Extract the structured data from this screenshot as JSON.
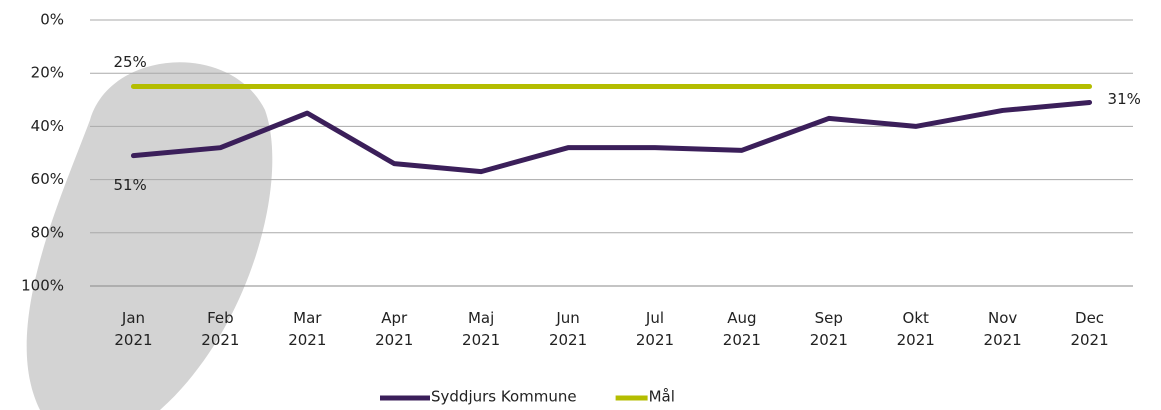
{
  "chart_data": {
    "type": "line",
    "categories": [
      "Jan 2021",
      "Feb 2021",
      "Mar 2021",
      "Apr 2021",
      "Maj 2021",
      "Jun 2021",
      "Jul 2021",
      "Aug 2021",
      "Sep 2021",
      "Okt 2021",
      "Nov 2021",
      "Dec 2021"
    ],
    "series": [
      {
        "name": "Syddjurs Kommune",
        "color": "#3b1f5a",
        "values": [
          51,
          48,
          35,
          54,
          57,
          48,
          48,
          49,
          37,
          40,
          34,
          31
        ],
        "value_labels": [
          "51%",
          null,
          null,
          null,
          null,
          null,
          null,
          null,
          null,
          null,
          null,
          "31%"
        ]
      },
      {
        "name": "Mål",
        "color": "#b4bd00",
        "values": [
          25,
          25,
          25,
          25,
          25,
          25,
          25,
          25,
          25,
          25,
          25,
          25
        ],
        "value_labels": [
          "25%",
          null,
          null,
          null,
          null,
          null,
          null,
          null,
          null,
          null,
          null,
          null
        ]
      }
    ],
    "ylim": [
      0,
      100
    ],
    "y_inverted": true,
    "yticks": [
      {
        "value": 0,
        "label": "0%"
      },
      {
        "value": 20,
        "label": "20%"
      },
      {
        "value": 40,
        "label": "40%"
      },
      {
        "value": 60,
        "label": "60%"
      },
      {
        "value": 80,
        "label": "80%"
      },
      {
        "value": 100,
        "label": "100%"
      }
    ],
    "grid": true,
    "legend": "bottom"
  }
}
